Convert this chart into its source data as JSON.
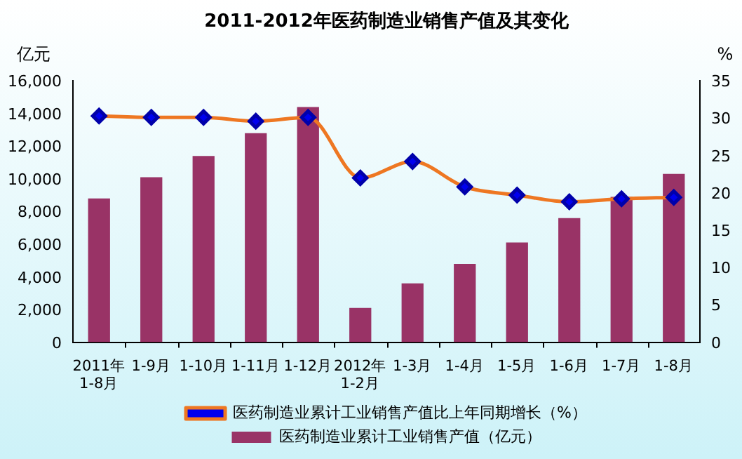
{
  "chart_data": {
    "type": "bar",
    "title": "2011-2012年医药制造业销售产值及其变化",
    "ylabel": "亿元",
    "y2label": "%",
    "categories": [
      "2011年\n1-8月",
      "1-9月",
      "1-10月",
      "1-11月",
      "1-12月",
      "2012年\n1-2月",
      "1-3月",
      "1-4月",
      "1-5月",
      "1-6月",
      "1-7月",
      "1-8月"
    ],
    "series": [
      {
        "name": "医药制造业累计工业销售产值（亿元）",
        "color": "#993366",
        "values": [
          8800,
          10100,
          11400,
          12800,
          14400,
          2100,
          3600,
          4800,
          6100,
          7600,
          8900,
          10300
        ]
      },
      {
        "name": "医药制造业累计工业销售产值比上年同期增长（%）",
        "type": "line",
        "axis": "y2",
        "color": "#ee7722",
        "values": [
          30.3,
          30.1,
          30.1,
          29.6,
          30.1,
          22.0,
          24.2,
          20.8,
          19.7,
          18.8,
          19.2,
          19.4
        ]
      }
    ],
    "ylim": [
      0,
      16000
    ],
    "yticks": [
      0,
      {
        "value": 2000,
        "label": "2,000"
      },
      {
        "value": 4000,
        "label": "4,000"
      },
      {
        "value": 6000,
        "label": "6,000"
      },
      {
        "value": 8000,
        "label": "8,000"
      },
      {
        "value": 10000,
        "label": "10,000"
      },
      {
        "value": 12000,
        "label": "12,000"
      },
      {
        "value": 14000,
        "label": "14,000"
      },
      {
        "value": 16000,
        "label": "16,000"
      }
    ],
    "y2lim": [
      0,
      35
    ],
    "y2ticks": [
      0,
      5,
      10,
      15,
      20,
      25,
      30,
      35
    ],
    "grid": false,
    "legend": "bottom",
    "marker": "diamond"
  }
}
